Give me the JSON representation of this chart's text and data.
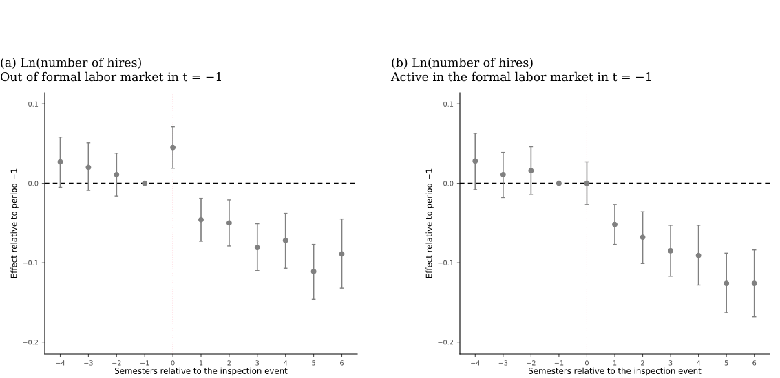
{
  "chart_data": [
    {
      "type": "scatter",
      "title": "(a) Ln(number of hires)\nOut of formal labor market in t = −1",
      "xlabel": "Semesters relative to the inspection event",
      "ylabel": "Effect relative to period −1",
      "x": [
        -4,
        -3,
        -2,
        -1,
        0,
        1,
        2,
        3,
        4,
        5,
        6
      ],
      "series": [
        {
          "color": "#808080",
          "values": [
            0.027,
            0.02,
            0.011,
            0,
            0.045,
            -0.046,
            -0.05,
            -0.081,
            -0.072,
            -0.111,
            -0.089
          ],
          "errors": [
            [
              -0.005,
              0.058
            ],
            [
              -0.009,
              0.051
            ],
            [
              -0.016,
              0.038
            ],
            null,
            [
              0.019,
              0.071
            ],
            [
              -0.073,
              -0.019
            ],
            [
              -0.079,
              -0.021
            ],
            [
              -0.11,
              -0.051
            ],
            [
              -0.107,
              -0.038
            ],
            [
              -0.146,
              -0.077
            ],
            [
              -0.132,
              -0.045
            ]
          ]
        }
      ],
      "marker": "circle",
      "xlim": [
        -4.55,
        6.55
      ],
      "ylim": [
        -0.215,
        0.114
      ],
      "xticks": [
        {
          "value": -4,
          "label": "−4"
        },
        {
          "value": -3,
          "label": "−3"
        },
        {
          "value": -2,
          "label": "−2"
        },
        {
          "value": -1,
          "label": "−1"
        },
        0,
        1,
        2,
        3,
        4,
        5,
        6
      ],
      "yticks": [
        {
          "value": -0.2,
          "label": "−0.2"
        },
        {
          "value": -0.1,
          "label": "−0.1"
        },
        {
          "value": 0,
          "label": "0.0"
        },
        0.1
      ],
      "ref_lines": [
        {
          "axis": "y",
          "value": 0,
          "color": "#000000",
          "line_style": "dashed"
        },
        {
          "axis": "x",
          "value": 0,
          "color": "#ffc0cb",
          "line_style": "dotted"
        }
      ],
      "grid": false,
      "legend": false
    },
    {
      "type": "scatter",
      "title": "(b) Ln(number of hires)\nActive in the formal labor market in t = −1",
      "xlabel": "Semesters relative to the inspection event",
      "ylabel": "Effect relative to period −1",
      "x": [
        -4,
        -3,
        -2,
        -1,
        0,
        1,
        2,
        3,
        4,
        5,
        6
      ],
      "series": [
        {
          "color": "#808080",
          "values": [
            0.028,
            0.011,
            0.016,
            0,
            0,
            -0.052,
            -0.068,
            -0.085,
            -0.091,
            -0.126,
            -0.126
          ],
          "errors": [
            [
              -0.008,
              0.063
            ],
            [
              -0.018,
              0.039
            ],
            [
              -0.014,
              0.046
            ],
            null,
            [
              -0.027,
              0.027
            ],
            [
              -0.077,
              -0.027
            ],
            [
              -0.101,
              -0.036
            ],
            [
              -0.117,
              -0.053
            ],
            [
              -0.128,
              -0.053
            ],
            [
              -0.163,
              -0.088
            ],
            [
              -0.168,
              -0.084
            ]
          ]
        }
      ],
      "marker": "circle",
      "xlim": [
        -4.55,
        6.55
      ],
      "ylim": [
        -0.215,
        0.114
      ],
      "xticks": [
        {
          "value": -4,
          "label": "−4"
        },
        {
          "value": -3,
          "label": "−3"
        },
        {
          "value": -2,
          "label": "−2"
        },
        {
          "value": -1,
          "label": "−1"
        },
        0,
        1,
        2,
        3,
        4,
        5,
        6
      ],
      "yticks": [
        {
          "value": -0.2,
          "label": "−0.2"
        },
        {
          "value": -0.1,
          "label": "−0.1"
        },
        {
          "value": 0,
          "label": "0.0"
        },
        0.1
      ],
      "ref_lines": [
        {
          "axis": "y",
          "value": 0,
          "color": "#000000",
          "line_style": "dashed"
        },
        {
          "axis": "x",
          "value": 0,
          "color": "#ffc0cb",
          "line_style": "dotted"
        }
      ],
      "grid": false,
      "legend": false
    }
  ]
}
